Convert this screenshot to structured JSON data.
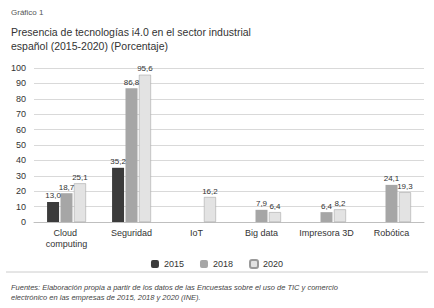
{
  "chart_data": {
    "type": "bar",
    "title": "Presencia de tecnologías i4.0 en el sector industrial español (2015-2020) (Porcentaje)",
    "annotations": [
      "Gráfico 1",
      "Fuentes: Elaboración propia a partir de los datos de las Encuestas sobre el uso de TIC y comercio electrónico en las empresas de 2015, 2018 y 2020 (INE)."
    ],
    "categories": [
      "Cloud computing",
      "Seguridad",
      "IoT",
      "Big data",
      "Impresora 3D",
      "Robótica"
    ],
    "series": [
      {
        "name": "2015",
        "color": "#3b3b3b",
        "values": [
          13.0,
          35.2,
          null,
          null,
          null,
          null
        ],
        "value_labels": [
          "13,0",
          "35,2",
          null,
          null,
          null,
          null
        ]
      },
      {
        "name": "2018",
        "color": "#a6a6a6",
        "values": [
          18.7,
          86.8,
          null,
          7.9,
          6.4,
          24.1
        ],
        "value_labels": [
          "18,7",
          "86,8",
          null,
          "7,9",
          "6,4",
          "24,1"
        ]
      },
      {
        "name": "2020",
        "color": "#e3e3e3",
        "values": [
          25.1,
          95.6,
          16.2,
          6.4,
          8.2,
          19.3
        ],
        "value_labels": [
          "25,1",
          "95,6",
          "16,2",
          "6,4",
          "8,2",
          "19,3"
        ]
      }
    ],
    "ylim": [
      0,
      100
    ],
    "yticks": [
      0,
      10,
      20,
      30,
      40,
      50,
      60,
      70,
      80,
      90,
      100
    ],
    "grid": true,
    "legend": "bottom",
    "data_labels": true
  }
}
